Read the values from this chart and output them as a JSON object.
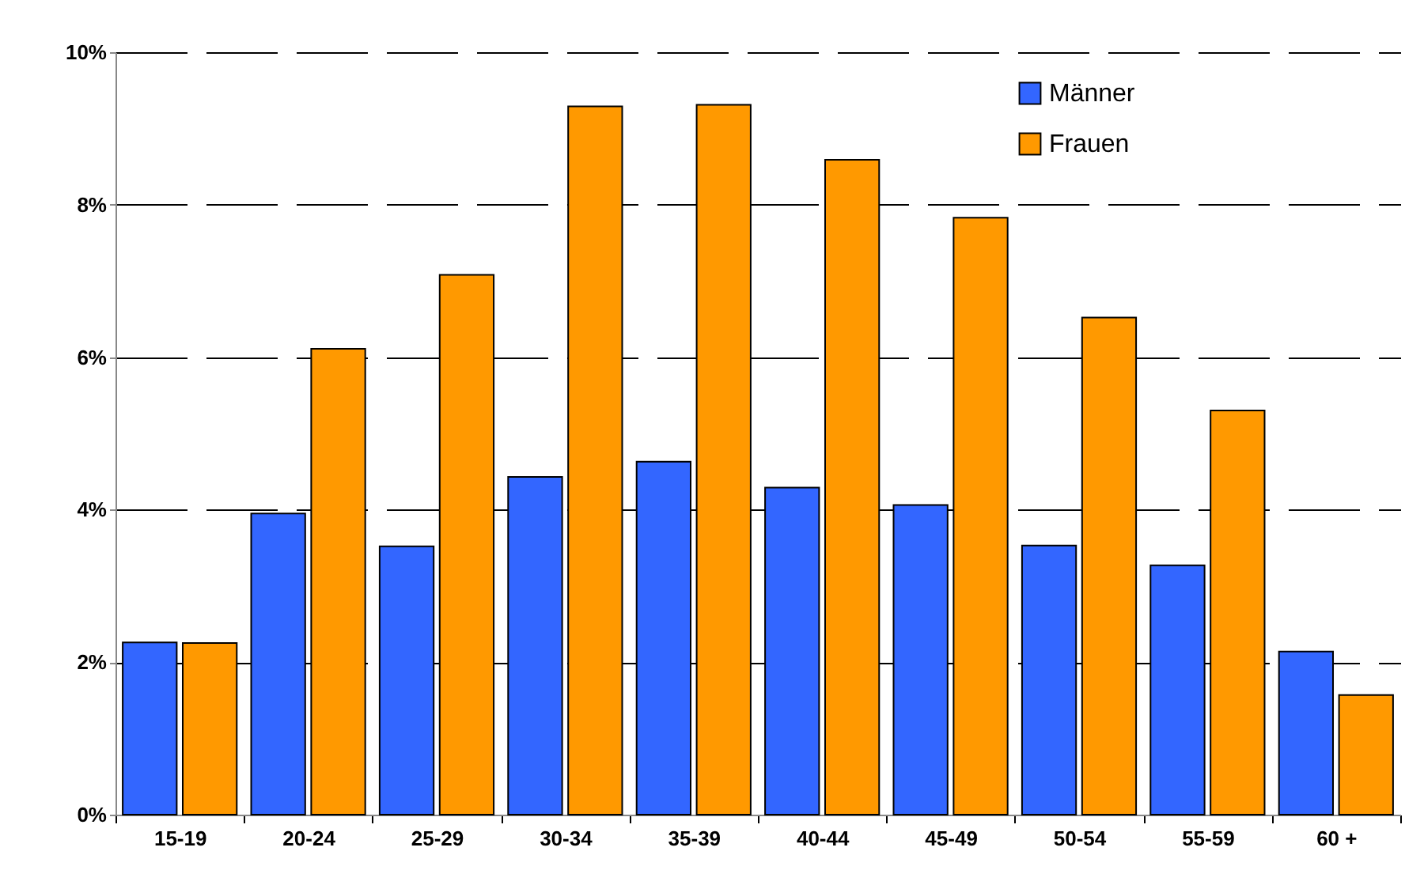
{
  "chart_data": {
    "type": "bar",
    "categories": [
      "15-19",
      "20-24",
      "25-29",
      "30-34",
      "35-39",
      "40-44",
      "45-49",
      "50-54",
      "55-59",
      "60 +"
    ],
    "series": [
      {
        "name": "Männer",
        "color": "#3366ff",
        "values": [
          2.26,
          3.95,
          3.52,
          4.43,
          4.63,
          4.29,
          4.06,
          3.53,
          3.27,
          2.14
        ]
      },
      {
        "name": "Frauen",
        "color": "#ff9900",
        "values": [
          2.25,
          6.11,
          7.08,
          9.29,
          9.31,
          8.59,
          7.83,
          6.52,
          5.3,
          1.57
        ]
      }
    ],
    "ylim": [
      0,
      10
    ],
    "yticks": [
      {
        "value": 0,
        "label": "0%"
      },
      {
        "value": 2,
        "label": "2%"
      },
      {
        "value": 4,
        "label": "4%"
      },
      {
        "value": 6,
        "label": "6%"
      },
      {
        "value": 8,
        "label": "8%"
      },
      {
        "value": 10,
        "label": "10%"
      }
    ],
    "grid": "y",
    "legend": "top right"
  }
}
